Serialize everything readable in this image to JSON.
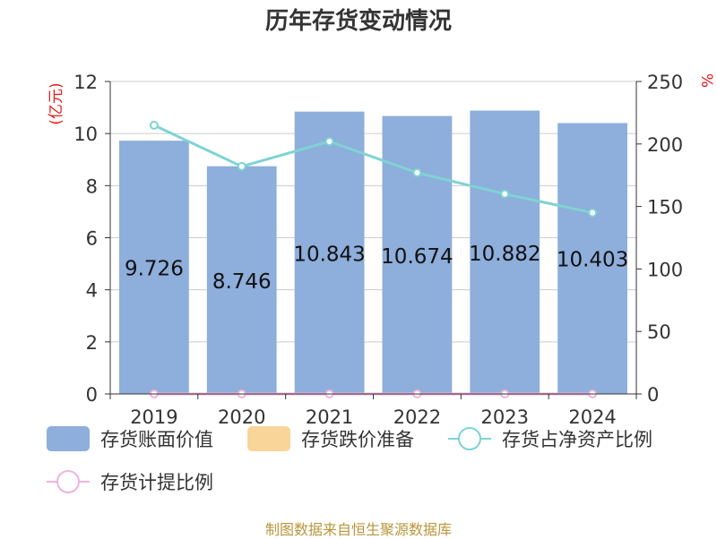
{
  "chart_data": {
    "type": "bar",
    "title": "历年存货变动情况",
    "categories": [
      "2019",
      "2020",
      "2021",
      "2022",
      "2023",
      "2024"
    ],
    "left_axis": {
      "label": "(亿元)",
      "range": [
        0,
        12
      ],
      "ticks": [
        "0",
        "2",
        "4",
        "6",
        "8",
        "10",
        "12"
      ]
    },
    "right_axis": {
      "label": "%",
      "range": [
        0,
        250
      ],
      "ticks": [
        "0",
        "50",
        "100",
        "150",
        "200",
        "250"
      ]
    },
    "series": [
      {
        "name": "存货账面价值",
        "kind": "bar",
        "axis": "left",
        "color": "#8eaedb",
        "values": [
          9.726,
          8.746,
          10.843,
          10.674,
          10.882,
          10.403
        ],
        "labels": [
          "9.726",
          "8.746",
          "10.843",
          "10.674",
          "10.882",
          "10.403"
        ]
      },
      {
        "name": "存货跌价准备",
        "kind": "bar",
        "axis": "left",
        "color": "#f9d59a",
        "values": [
          0,
          0,
          0,
          0,
          0,
          0
        ]
      },
      {
        "name": "存货占净资产比例",
        "kind": "line",
        "axis": "right",
        "color": "#7fd3d3",
        "values": [
          215,
          182,
          202,
          177,
          160,
          145
        ]
      },
      {
        "name": "存货计提比例",
        "kind": "line",
        "axis": "right",
        "color": "#f0b3dd",
        "values": [
          0,
          0,
          0,
          0,
          0,
          0
        ]
      }
    ],
    "grid": true,
    "legend_position": "bottom"
  },
  "footer": {
    "source": "制图数据来自恒生聚源数据库"
  }
}
